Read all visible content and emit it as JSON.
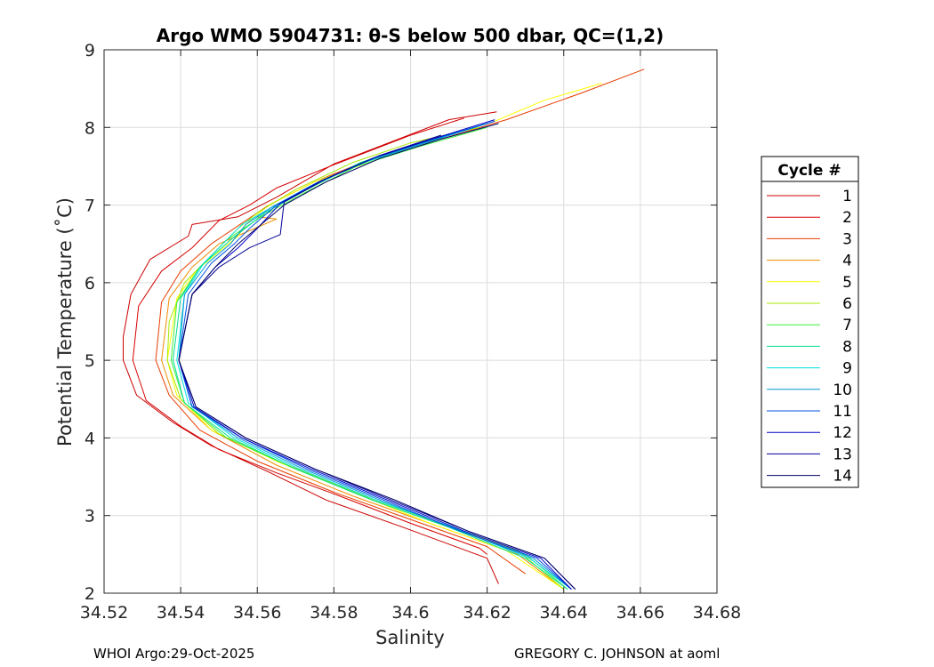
{
  "chart_data": {
    "type": "line",
    "title": "Argo WMO 5904731: θ-S below 500 dbar,  QC=(1,2)",
    "xlabel": "Salinity",
    "ylabel": "Potential Temperature (˚C)",
    "xlim": [
      34.52,
      34.68
    ],
    "ylim": [
      2,
      9
    ],
    "xticks": [
      34.52,
      34.54,
      34.56,
      34.58,
      34.6,
      34.62,
      34.64,
      34.66,
      34.68
    ],
    "xtick_labels": [
      "34.52",
      "34.54",
      "34.56",
      "34.58",
      "34.6",
      "34.62",
      "34.64",
      "34.66",
      "34.68"
    ],
    "yticks": [
      2,
      3,
      4,
      5,
      6,
      7,
      8,
      9
    ],
    "ytick_labels": [
      "2",
      "3",
      "4",
      "5",
      "6",
      "7",
      "8",
      "9"
    ],
    "grid": true,
    "legend_title": "Cycle #",
    "legend_position": "right",
    "series": [
      {
        "name": "1",
        "color": "#cc0000",
        "points": [
          [
            34.6225,
            8.2
          ],
          [
            34.61,
            8.1
          ],
          [
            34.58,
            7.53
          ],
          [
            34.565,
            7.1
          ],
          [
            34.555,
            6.85
          ],
          [
            34.543,
            6.75
          ],
          [
            34.542,
            6.6
          ],
          [
            34.532,
            6.3
          ],
          [
            34.527,
            5.85
          ],
          [
            34.525,
            5.3
          ],
          [
            34.525,
            5.0
          ],
          [
            34.5285,
            4.55
          ],
          [
            34.538,
            4.2
          ],
          [
            34.548,
            3.9
          ],
          [
            34.563,
            3.56
          ],
          [
            34.578,
            3.2
          ],
          [
            34.598,
            2.85
          ],
          [
            34.62,
            2.45
          ],
          [
            34.623,
            2.12
          ]
        ]
      },
      {
        "name": "2",
        "color": "#d60000",
        "points": [
          [
            34.614,
            8.12
          ],
          [
            34.6,
            7.9
          ],
          [
            34.58,
            7.52
          ],
          [
            34.565,
            7.22
          ],
          [
            34.558,
            7.0
          ],
          [
            34.55,
            6.8
          ],
          [
            34.543,
            6.45
          ],
          [
            34.535,
            6.15
          ],
          [
            34.529,
            5.7
          ],
          [
            34.5275,
            5.0
          ],
          [
            34.531,
            4.48
          ],
          [
            34.54,
            4.15
          ],
          [
            34.55,
            3.85
          ],
          [
            34.565,
            3.55
          ],
          [
            34.58,
            3.28
          ],
          [
            34.6,
            2.9
          ],
          [
            34.618,
            2.58
          ],
          [
            34.62,
            2.5
          ]
        ]
      },
      {
        "name": "3",
        "color": "#e83c00",
        "points": [
          [
            34.661,
            8.75
          ],
          [
            34.645,
            8.45
          ],
          [
            34.625,
            8.1
          ],
          [
            34.61,
            7.88
          ],
          [
            34.59,
            7.6
          ],
          [
            34.575,
            7.3
          ],
          [
            34.563,
            7.0
          ],
          [
            34.557,
            6.8
          ],
          [
            34.548,
            6.5
          ],
          [
            34.54,
            6.15
          ],
          [
            34.535,
            5.75
          ],
          [
            34.5335,
            5.0
          ],
          [
            34.537,
            4.55
          ],
          [
            34.545,
            4.1
          ],
          [
            34.56,
            3.7
          ],
          [
            34.58,
            3.3
          ],
          [
            34.6,
            2.95
          ],
          [
            34.62,
            2.6
          ],
          [
            34.63,
            2.25
          ]
        ]
      },
      {
        "name": "4",
        "color": "#f08c00",
        "points": [
          [
            34.56,
            6.85
          ],
          [
            34.565,
            6.82
          ],
          [
            34.55,
            6.5
          ],
          [
            34.543,
            6.2
          ],
          [
            34.537,
            5.8
          ],
          [
            34.535,
            5.0
          ],
          [
            34.538,
            4.55
          ],
          [
            34.548,
            4.1
          ],
          [
            34.565,
            3.65
          ],
          [
            34.585,
            3.25
          ],
          [
            34.605,
            2.9
          ],
          [
            34.628,
            2.5
          ],
          [
            34.64,
            2.05
          ]
        ]
      },
      {
        "name": "5",
        "color": "#ffff00",
        "points": [
          [
            34.65,
            8.57
          ],
          [
            34.635,
            8.35
          ],
          [
            34.622,
            8.08
          ],
          [
            34.61,
            7.9
          ],
          [
            34.592,
            7.6
          ],
          [
            34.575,
            7.3
          ],
          [
            34.563,
            7.0
          ],
          [
            34.557,
            6.75
          ],
          [
            34.555,
            6.6
          ],
          [
            34.55,
            6.4
          ],
          [
            34.544,
            6.15
          ],
          [
            34.539,
            5.8
          ],
          [
            34.5365,
            5.0
          ],
          [
            34.539,
            4.55
          ],
          [
            34.548,
            4.1
          ],
          [
            34.565,
            3.7
          ],
          [
            34.585,
            3.3
          ],
          [
            34.605,
            2.9
          ],
          [
            34.625,
            2.55
          ],
          [
            34.64,
            2.05
          ]
        ]
      },
      {
        "name": "6",
        "color": "#a8e800",
        "points": [
          [
            34.618,
            8.0
          ],
          [
            34.6,
            7.8
          ],
          [
            34.585,
            7.55
          ],
          [
            34.57,
            7.2
          ],
          [
            34.56,
            6.9
          ],
          [
            34.555,
            6.7
          ],
          [
            34.548,
            6.35
          ],
          [
            34.541,
            6.0
          ],
          [
            34.537,
            5.5
          ],
          [
            34.5365,
            5.0
          ],
          [
            34.54,
            4.5
          ],
          [
            34.55,
            4.05
          ],
          [
            34.568,
            3.65
          ],
          [
            34.588,
            3.25
          ],
          [
            34.608,
            2.9
          ],
          [
            34.628,
            2.55
          ],
          [
            34.64,
            2.05
          ]
        ]
      },
      {
        "name": "7",
        "color": "#3cf03c",
        "points": [
          [
            34.62,
            8.0
          ],
          [
            34.602,
            7.75
          ],
          [
            34.586,
            7.5
          ],
          [
            34.572,
            7.15
          ],
          [
            34.561,
            6.85
          ],
          [
            34.552,
            6.55
          ],
          [
            34.545,
            6.2
          ],
          [
            34.539,
            5.75
          ],
          [
            34.5375,
            5.0
          ],
          [
            34.541,
            4.45
          ],
          [
            34.552,
            4.0
          ],
          [
            34.57,
            3.6
          ],
          [
            34.59,
            3.2
          ],
          [
            34.61,
            2.85
          ],
          [
            34.63,
            2.5
          ],
          [
            34.641,
            2.05
          ]
        ]
      },
      {
        "name": "8",
        "color": "#00e08c",
        "points": [
          [
            34.62,
            8.05
          ],
          [
            34.603,
            7.8
          ],
          [
            34.587,
            7.55
          ],
          [
            34.573,
            7.2
          ],
          [
            34.562,
            6.9
          ],
          [
            34.553,
            6.55
          ],
          [
            34.545,
            6.2
          ],
          [
            34.54,
            5.8
          ],
          [
            34.538,
            5.0
          ],
          [
            34.541,
            4.45
          ],
          [
            34.553,
            4.0
          ],
          [
            34.57,
            3.6
          ],
          [
            34.59,
            3.2
          ],
          [
            34.61,
            2.85
          ],
          [
            34.63,
            2.45
          ],
          [
            34.641,
            2.05
          ]
        ]
      },
      {
        "name": "9",
        "color": "#00e0e0",
        "points": [
          [
            34.62,
            8.05
          ],
          [
            34.604,
            7.8
          ],
          [
            34.588,
            7.55
          ],
          [
            34.574,
            7.25
          ],
          [
            34.563,
            6.95
          ],
          [
            34.556,
            6.75
          ],
          [
            34.552,
            6.55
          ],
          [
            34.546,
            6.25
          ],
          [
            34.541,
            5.85
          ],
          [
            34.539,
            5.0
          ],
          [
            34.542,
            4.45
          ],
          [
            34.554,
            4.0
          ],
          [
            34.571,
            3.6
          ],
          [
            34.591,
            3.2
          ],
          [
            34.611,
            2.85
          ],
          [
            34.631,
            2.45
          ],
          [
            34.642,
            2.05
          ]
        ]
      },
      {
        "name": "10",
        "color": "#0096d6",
        "points": [
          [
            34.622,
            8.08
          ],
          [
            34.605,
            7.82
          ],
          [
            34.589,
            7.57
          ],
          [
            34.575,
            7.27
          ],
          [
            34.564,
            6.98
          ],
          [
            34.557,
            6.75
          ],
          [
            34.553,
            6.5
          ],
          [
            34.547,
            6.25
          ],
          [
            34.541,
            5.85
          ],
          [
            34.5395,
            5.0
          ],
          [
            34.543,
            4.4
          ],
          [
            34.555,
            4.0
          ],
          [
            34.572,
            3.6
          ],
          [
            34.592,
            3.2
          ],
          [
            34.612,
            2.82
          ],
          [
            34.632,
            2.45
          ],
          [
            34.642,
            2.05
          ]
        ]
      },
      {
        "name": "11",
        "color": "#0050e0",
        "points": [
          [
            34.622,
            8.08
          ],
          [
            34.606,
            7.85
          ],
          [
            34.59,
            7.6
          ],
          [
            34.576,
            7.3
          ],
          [
            34.565,
            7.0
          ],
          [
            34.558,
            6.7
          ],
          [
            34.554,
            6.5
          ],
          [
            34.548,
            6.25
          ],
          [
            34.542,
            5.85
          ],
          [
            34.5395,
            5.0
          ],
          [
            34.543,
            4.4
          ],
          [
            34.556,
            4.0
          ],
          [
            34.573,
            3.6
          ],
          [
            34.593,
            3.2
          ],
          [
            34.613,
            2.8
          ],
          [
            34.633,
            2.45
          ],
          [
            34.642,
            2.05
          ]
        ]
      },
      {
        "name": "12",
        "color": "#0000c8",
        "points": [
          [
            34.622,
            8.1
          ],
          [
            34.607,
            7.87
          ],
          [
            34.591,
            7.62
          ],
          [
            34.577,
            7.32
          ],
          [
            34.566,
            7.02
          ],
          [
            34.56,
            6.7
          ],
          [
            34.555,
            6.45
          ],
          [
            34.549,
            6.2
          ],
          [
            34.543,
            5.85
          ],
          [
            34.5395,
            5.0
          ],
          [
            34.5435,
            4.4
          ],
          [
            34.556,
            4.0
          ],
          [
            34.574,
            3.6
          ],
          [
            34.594,
            3.2
          ],
          [
            34.614,
            2.8
          ],
          [
            34.634,
            2.45
          ],
          [
            34.642,
            2.05
          ]
        ]
      },
      {
        "name": "13",
        "color": "#000096",
        "points": [
          [
            34.608,
            7.9
          ],
          [
            34.592,
            7.64
          ],
          [
            34.578,
            7.34
          ],
          [
            34.567,
            7.04
          ],
          [
            34.566,
            6.62
          ],
          [
            34.558,
            6.45
          ],
          [
            34.55,
            6.2
          ],
          [
            34.543,
            5.85
          ],
          [
            34.5395,
            5.0
          ],
          [
            34.544,
            4.4
          ],
          [
            34.557,
            4.0
          ],
          [
            34.575,
            3.6
          ],
          [
            34.595,
            3.2
          ],
          [
            34.615,
            2.8
          ],
          [
            34.635,
            2.45
          ],
          [
            34.643,
            2.05
          ]
        ]
      },
      {
        "name": "14",
        "color": "#000064",
        "points": [
          [
            34.623,
            8.05
          ],
          [
            34.608,
            7.85
          ],
          [
            34.592,
            7.6
          ],
          [
            34.578,
            7.3
          ],
          [
            34.567,
            7.0
          ],
          [
            34.561,
            6.75
          ],
          [
            34.555,
            6.5
          ],
          [
            34.549,
            6.2
          ],
          [
            34.543,
            5.85
          ],
          [
            34.5395,
            5.0
          ],
          [
            34.544,
            4.4
          ],
          [
            34.557,
            4.0
          ],
          [
            34.575,
            3.6
          ],
          [
            34.596,
            3.2
          ],
          [
            34.615,
            2.8
          ],
          [
            34.635,
            2.45
          ],
          [
            34.643,
            2.05
          ]
        ]
      }
    ]
  },
  "footer": {
    "left": "WHOI Argo:29-Oct-2025",
    "right": "GREGORY C. JOHNSON at aoml"
  }
}
